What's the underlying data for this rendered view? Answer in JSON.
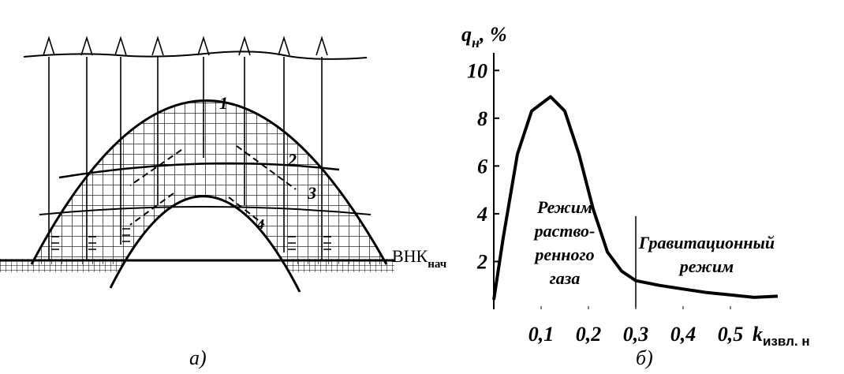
{
  "panel_a": {
    "curve_labels": [
      "1",
      "2",
      "3",
      "4"
    ],
    "contact_label": {
      "text": "ВНК",
      "subscript": "нач"
    },
    "caption": "а)"
  },
  "chart_data": {
    "type": "line",
    "caption": "б)",
    "y_label": {
      "symbol": "q",
      "subscript": "н",
      "suffix": ", %"
    },
    "x_label": {
      "symbol": "k",
      "subscript": "извл. н"
    },
    "x": [
      0,
      0.02,
      0.05,
      0.08,
      0.12,
      0.15,
      0.18,
      0.21,
      0.24,
      0.27,
      0.3,
      0.35,
      0.4,
      0.45,
      0.5,
      0.55,
      0.6
    ],
    "values": [
      0.4,
      3,
      6.5,
      8.3,
      8.9,
      8.3,
      6.5,
      4.2,
      2.4,
      1.6,
      1.2,
      1.0,
      0.85,
      0.7,
      0.6,
      0.5,
      0.55
    ],
    "color": "#000000",
    "xlim": [
      0,
      0.6
    ],
    "ylim": [
      0,
      11
    ],
    "xticks": [
      {
        "value": 0.1,
        "label": "0,1"
      },
      {
        "value": 0.2,
        "label": "0,2"
      },
      {
        "value": 0.3,
        "label": "0,3"
      },
      {
        "value": 0.4,
        "label": "0,4"
      },
      {
        "value": 0.5,
        "label": "0,5"
      }
    ],
    "yticks": [
      2,
      4,
      6,
      8,
      10
    ],
    "grid": false,
    "annotations": [
      {
        "x": 0.15,
        "lines": [
          "Режим",
          "раство-",
          "ренного",
          "газа"
        ]
      },
      {
        "x": 0.45,
        "lines": [
          "Гравитационный",
          "режим"
        ]
      }
    ],
    "divider_x": 0.3
  }
}
